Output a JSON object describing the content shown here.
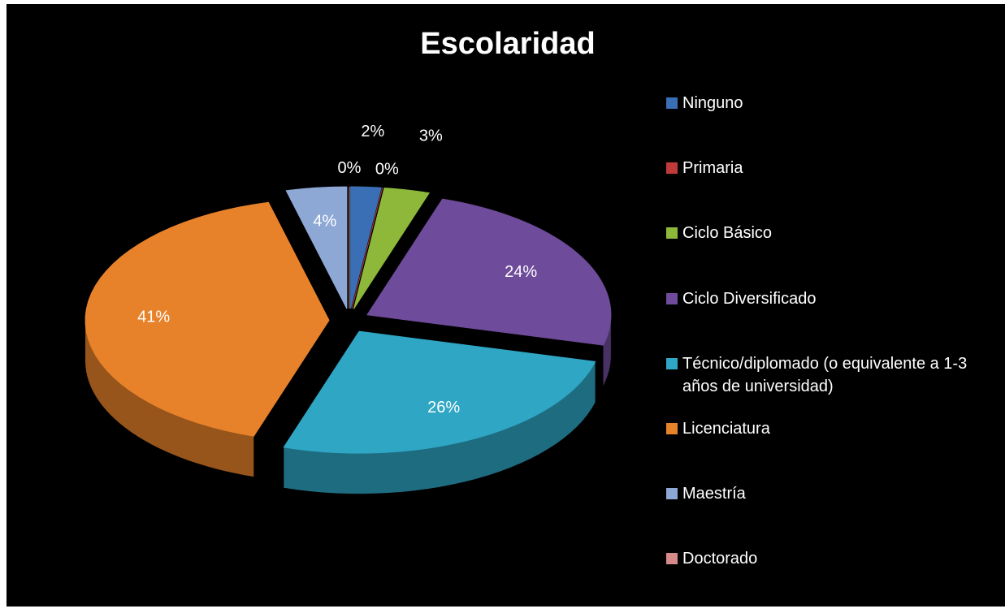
{
  "chart_data": {
    "type": "pie",
    "title": "Escolaridad",
    "categories": [
      "Ninguno",
      "Primaria",
      "Ciclo Básico",
      "Ciclo Diversificado",
      "Técnico/diplomado (o equivalente a 1-3 años de universidad)",
      "Licenciatura",
      "Maestría",
      "Doctorado"
    ],
    "values": [
      2,
      0,
      3,
      24,
      26,
      41,
      4,
      0
    ],
    "value_labels": [
      "2%",
      "0%",
      "3%",
      "24%",
      "26%",
      "41%",
      "4%",
      "0%"
    ],
    "colors": [
      "#3a6fb5",
      "#c03a3a",
      "#8db83a",
      "#6f4b9b",
      "#2ea6c4",
      "#e8822a",
      "#8ea8d6",
      "#d68a8a"
    ],
    "legend": "right"
  }
}
